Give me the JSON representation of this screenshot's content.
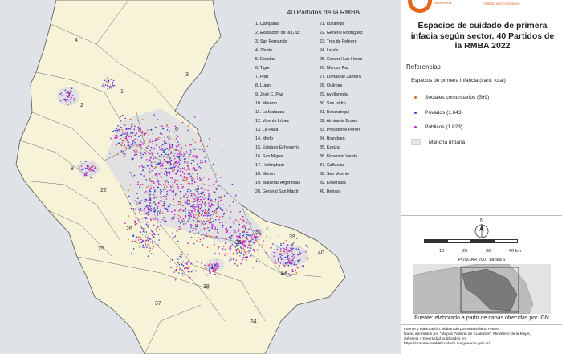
{
  "map": {
    "partidos_title": "40 Partidos de la RMBA",
    "partidos_col1": [
      "1. Campana",
      "2. Exaltación de la Cruz",
      "3. San Fernando",
      "4. Zárate",
      "5. Escobar",
      "6. Tigre",
      "7. Pilar",
      "8. Luján",
      "9. José C. Paz",
      "10. Moreno",
      "11. La Matanza",
      "12. Vicente López",
      "13. La Plata",
      "14. Merlo",
      "15. Esteban Echeverría",
      "16. San Miguel",
      "17. Hurlingham",
      "18. Morón",
      "19. Malvinas Argentinas",
      "20. General San Martín"
    ],
    "partidos_col2": [
      "21. Ituzaingó",
      "22. General Rodríguez",
      "23. Tres de Febrero",
      "24. Lanús",
      "25. General Las Heras",
      "26. Marcos Paz",
      "27. Lomas de Zamora",
      "28. Quilmes",
      "29. Avellaneda",
      "30. San Isidro",
      "31. Berazategui",
      "32. Almirante Brown",
      "33. Presidente Perón",
      "34. Brandsen",
      "35. Ezeiza",
      "36. Florencio Varela",
      "37. Cañuelas",
      "38. San Vicente",
      "39. Ensenada",
      "40. Berisso"
    ],
    "district_labels": [
      "4",
      "3",
      "1",
      "2",
      "6",
      "8",
      "22",
      "26",
      "25",
      "37",
      "38",
      "36",
      "13",
      "31",
      "39",
      "40",
      "34"
    ]
  },
  "header": {
    "logo_subtitle_left": "Bienvenida",
    "logo_subtitle": "Instituto del Conurbano"
  },
  "legend": {
    "title": "Espacios de cuidado de primera infacia según sector. 40 Partidos de la RMBA 2022",
    "heading": "Referencias",
    "subheading": "Espacios de primera infancia (cant. total)",
    "items": [
      {
        "label": "Sociales comunitarios (599)",
        "color": "#e8651e"
      },
      {
        "label": "Privados (1.643)",
        "color": "#2b47c8"
      },
      {
        "label": "Públicos (1.823)",
        "color": "#c81ec8"
      }
    ],
    "urban_label": "Mancha urbana",
    "urban_color": "#e6e6e6"
  },
  "scale": {
    "north": "N",
    "ticks": [
      "10",
      "20",
      "30",
      "40 km"
    ],
    "projection": "POSGAR 2007 banda 5"
  },
  "footer": {
    "source": "Fuente: elaborado a partir de capas ofrecidas por IGN",
    "credits_line1": "Fuente y elaboración: elaborado por Maximiliano Pavez",
    "credits_line2": "Datos aportados por \"Mapas Federal de Cuidados\". Ministerio de la Mujer,",
    "credits_line3": "Géneros y Diversidad publicados en",
    "credits_line4": "https://mapafederaldelcuidado.mingeneros.gob.ar/"
  },
  "colors": {
    "land": "#f7f3d9",
    "water": "#dfe3e7",
    "urban": "#e1e1e1",
    "border": "#555555"
  }
}
